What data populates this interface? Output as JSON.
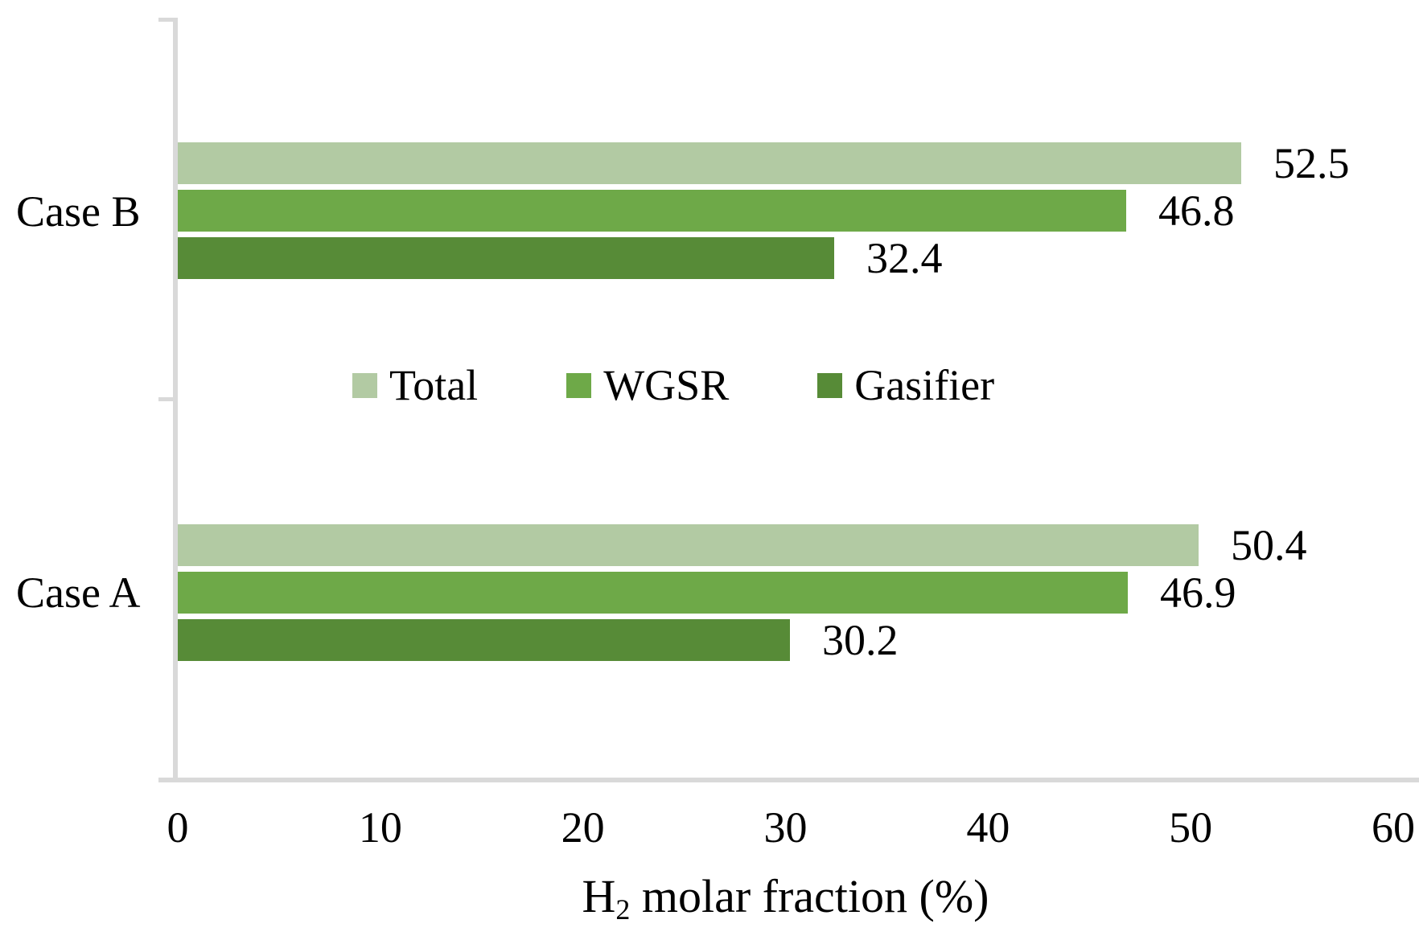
{
  "chart_data": {
    "type": "bar",
    "orientation": "horizontal",
    "title": "",
    "categories": [
      "Case B",
      "Case A"
    ],
    "series": [
      {
        "name": "Total",
        "color": "#b2caa3",
        "values": [
          52.5,
          50.4
        ]
      },
      {
        "name": "WGSR",
        "color": "#6ea948",
        "values": [
          46.8,
          46.9
        ]
      },
      {
        "name": "Gasifier",
        "color": "#578b37",
        "values": [
          32.4,
          30.2
        ]
      }
    ],
    "data_labels": [
      [
        "52.5",
        "46.8",
        "32.4"
      ],
      [
        "50.4",
        "46.9",
        "30.2"
      ]
    ],
    "xlabel_parts": {
      "prefix": "H",
      "sub": "2",
      "suffix": " molar fraction (%)"
    },
    "xlim": [
      0,
      60
    ],
    "xticks": [
      "0",
      "10",
      "20",
      "30",
      "40",
      "50",
      "60"
    ],
    "grid": false,
    "legend_position": "center-overlay",
    "axis_color": "#d9d9d9",
    "text_color": "#000000",
    "background_color": "#ffffff"
  }
}
